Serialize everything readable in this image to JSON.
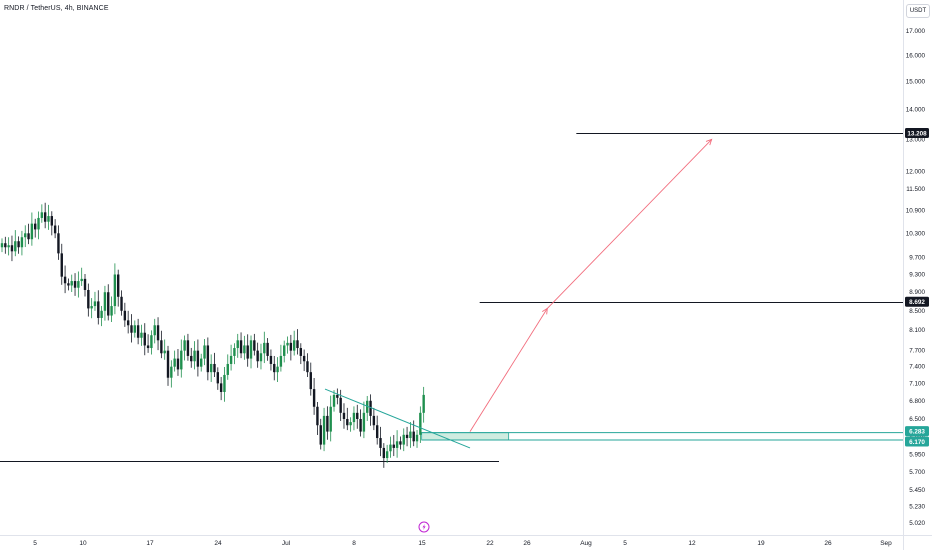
{
  "header": {
    "title": "RNDR / TetherUS, 4h, BINANCE",
    "currency": "USDT"
  },
  "colors": {
    "up": "#26a69a",
    "candle_up": "#1f8f4e",
    "candle_down": "#131722",
    "zone_fill": "#bfe6d6",
    "zone_line": "#26a69a",
    "arrow": "#f26d7d",
    "trendline": "#26a69a",
    "level_line": "#131722"
  },
  "chart_data": {
    "type": "candlestick",
    "symbol": "RNDR / TetherUS",
    "interval": "4h",
    "exchange": "BINANCE",
    "y_scale": "log",
    "ylim": [
      4.95,
      18.3
    ],
    "y_ticks": [
      "17.000",
      "16.000",
      "15.000",
      "14.000",
      "13.000",
      "12.000",
      "11.500",
      "10.900",
      "10.300",
      "9.700",
      "9.300",
      "8.900",
      "8.500",
      "8.100",
      "7.700",
      "7.400",
      "7.100",
      "6.800",
      "6.500",
      "6.200",
      "5.950",
      "5.700",
      "5.450",
      "5.230",
      "5.020"
    ],
    "x_ticks": [
      "5",
      "10",
      "17",
      "24",
      "Jul",
      "8",
      "15",
      "22",
      "26",
      "Aug",
      "5",
      "12",
      "19",
      "26",
      "Sep"
    ],
    "price_labels": [
      {
        "text": "13.208",
        "value": 13.208,
        "style": "dark"
      },
      {
        "text": "8.692",
        "value": 8.692,
        "style": "dark"
      },
      {
        "text": "6.283",
        "value": 6.283,
        "style": "green"
      },
      {
        "text": "6.170",
        "value": 6.17,
        "style": "green"
      }
    ],
    "horizontal_levels": [
      {
        "value": 13.208,
        "from": "2024-07-31",
        "to": "end"
      },
      {
        "value": 8.692,
        "from": "2024-07-21",
        "to": "end"
      },
      {
        "value": 5.86,
        "from": "start",
        "to": "2024-07-23"
      }
    ],
    "zone": {
      "top": 6.283,
      "bottom": 6.17,
      "from": "2024-07-15",
      "to": "2024-07-24",
      "extends_right": true
    },
    "trendline": {
      "from": {
        "date": "2024-07-05",
        "value": 7.0
      },
      "to": {
        "date": "2024-07-20",
        "value": 6.05
      }
    },
    "projection": [
      {
        "date": "2024-07-20",
        "value": 6.3
      },
      {
        "date": "2024-07-28",
        "value": 8.55
      },
      {
        "date": "2024-08-14",
        "value": 13.0
      }
    ],
    "candles_close": [
      10.05,
      9.95,
      10.0,
      9.85,
      10.1,
      9.95,
      10.2,
      10.3,
      10.15,
      10.55,
      10.4,
      10.7,
      10.85,
      10.6,
      10.75,
      10.5,
      10.3,
      9.8,
      9.25,
      9.1,
      9.05,
      9.15,
      9.0,
      9.15,
      9.2,
      8.95,
      8.55,
      8.6,
      8.7,
      8.35,
      8.5,
      8.9,
      8.4,
      8.6,
      9.3,
      8.8,
      8.5,
      8.3,
      8.2,
      8.05,
      8.2,
      7.95,
      8.05,
      7.8,
      7.75,
      8.0,
      8.2,
      7.9,
      7.65,
      7.7,
      7.2,
      7.4,
      7.55,
      7.35,
      7.7,
      7.9,
      7.6,
      7.5,
      7.7,
      7.4,
      7.55,
      7.8,
      7.3,
      7.45,
      7.3,
      7.1,
      6.95,
      7.25,
      7.45,
      7.6,
      7.75,
      7.9,
      7.65,
      7.8,
      7.55,
      7.9,
      7.7,
      7.5,
      7.65,
      7.85,
      7.6,
      7.45,
      7.3,
      7.4,
      7.6,
      7.8,
      7.85,
      7.7,
      7.9,
      7.75,
      7.6,
      7.5,
      7.3,
      7.0,
      6.7,
      6.4,
      6.1,
      6.55,
      6.3,
      6.7,
      6.9,
      6.85,
      6.6,
      6.5,
      6.4,
      6.45,
      6.6,
      6.5,
      6.3,
      6.6,
      6.8,
      6.55,
      6.4,
      6.2,
      6.05,
      5.9,
      6.0,
      6.1,
      6.05,
      6.15,
      6.1,
      6.25,
      6.2,
      6.3,
      6.15,
      6.25,
      6.6,
      6.9
    ]
  }
}
